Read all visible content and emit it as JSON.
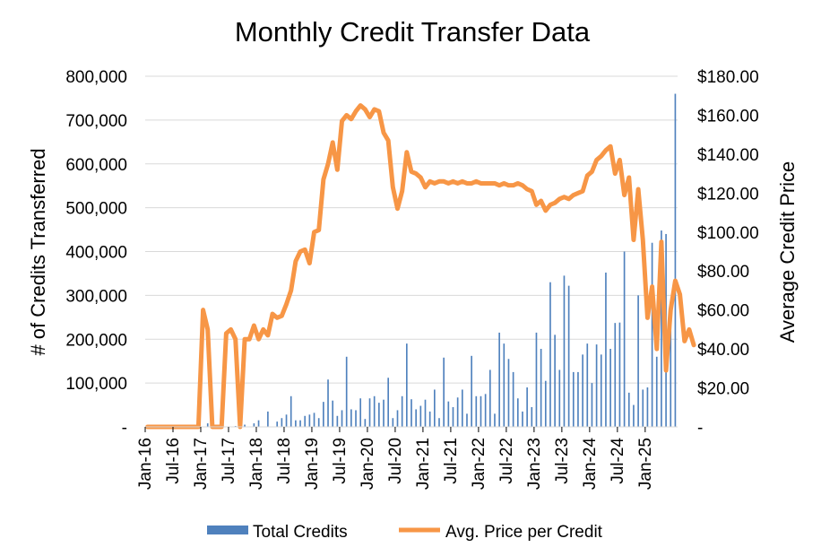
{
  "chart_data": {
    "type": "bar+line",
    "title": "Monthly Credit Transfer Data",
    "xlabel": "",
    "ylabel_left": "# of Credits Transferred",
    "ylabel_right": "Average Credit Price",
    "ylim_left": [
      0,
      800000
    ],
    "ylim_right": [
      0,
      180
    ],
    "y_ticks_left": [
      "-",
      "100,000",
      "200,000",
      "300,000",
      "400,000",
      "500,000",
      "600,000",
      "700,000",
      "800,000"
    ],
    "y_ticks_right": [
      "-",
      "$20.00",
      "$40.00",
      "$60.00",
      "$80.00",
      "$100.00",
      "$120.00",
      "$140.00",
      "$160.00",
      "$180.00"
    ],
    "x_tick_labels": [
      "Jan-16",
      "Jul-16",
      "Jan-17",
      "Jul-17",
      "Jan-18",
      "Jul-18",
      "Jan-19",
      "Jul-19",
      "Jan-20",
      "Jul-20",
      "Jan-21",
      "Jul-21",
      "Jan-22",
      "Jul-22",
      "Jan-23",
      "Jul-23",
      "Jan-24",
      "Jul-24",
      "Jan-25"
    ],
    "months_start": "2016-01",
    "grid": true,
    "legend_position": "bottom",
    "series": [
      {
        "name": "Total Credits",
        "type": "bar",
        "axis": "left",
        "color": "#4F81BD",
        "values": [
          0,
          0,
          0,
          0,
          0,
          0,
          0,
          0,
          0,
          0,
          0,
          0,
          0,
          8000,
          2000,
          0,
          0,
          0,
          0,
          2000,
          0,
          5000,
          0,
          8000,
          15000,
          0,
          35000,
          0,
          12000,
          20000,
          28000,
          70000,
          15000,
          15000,
          25000,
          28000,
          32000,
          20000,
          57000,
          108000,
          60000,
          25000,
          38000,
          160000,
          40000,
          38000,
          65000,
          18000,
          65000,
          70000,
          55000,
          62000,
          112000,
          20000,
          38000,
          70000,
          190000,
          63000,
          40000,
          48000,
          62000,
          35000,
          85000,
          20000,
          158000,
          58000,
          45000,
          67000,
          85000,
          30000,
          162000,
          70000,
          70000,
          75000,
          130000,
          30000,
          215000,
          190000,
          155000,
          125000,
          65000,
          35000,
          90000,
          45000,
          215000,
          178000,
          105000,
          330000,
          210000,
          130000,
          345000,
          322000,
          125000,
          125000,
          165000,
          190000,
          100000,
          188000,
          165000,
          352000,
          178000,
          237000,
          238000,
          400000,
          78000,
          50000,
          300000,
          85000,
          90000,
          420000,
          160000,
          448000,
          440000,
          262000,
          760000
        ]
      },
      {
        "name": "Avg. Price per Credit",
        "type": "line",
        "axis": "right",
        "color": "#F79646",
        "values": [
          0,
          0,
          0,
          0,
          0,
          0,
          0,
          0,
          0,
          0,
          0,
          0,
          60,
          50,
          0,
          0,
          0,
          48,
          50,
          45,
          0,
          45,
          45,
          52,
          45,
          50,
          47,
          58,
          56,
          57,
          63,
          70,
          85,
          90,
          91,
          84,
          100,
          101,
          127,
          135,
          146,
          132,
          157,
          160,
          158,
          162,
          165,
          163,
          159,
          163,
          162,
          151,
          147,
          123,
          112,
          121,
          141,
          131,
          130,
          128,
          123,
          126,
          125,
          126,
          126,
          125,
          126,
          125,
          126,
          125,
          125,
          126,
          125,
          125,
          125,
          125,
          124,
          125,
          124,
          124,
          125,
          124,
          122,
          121,
          114,
          116,
          111,
          114,
          115,
          117,
          118,
          117,
          119,
          120,
          121,
          129,
          131,
          137,
          139,
          142,
          144,
          130,
          137,
          119,
          128,
          96,
          122,
          96,
          56,
          72,
          40,
          95,
          29,
          60,
          75,
          68,
          44,
          50,
          42
        ]
      }
    ]
  }
}
